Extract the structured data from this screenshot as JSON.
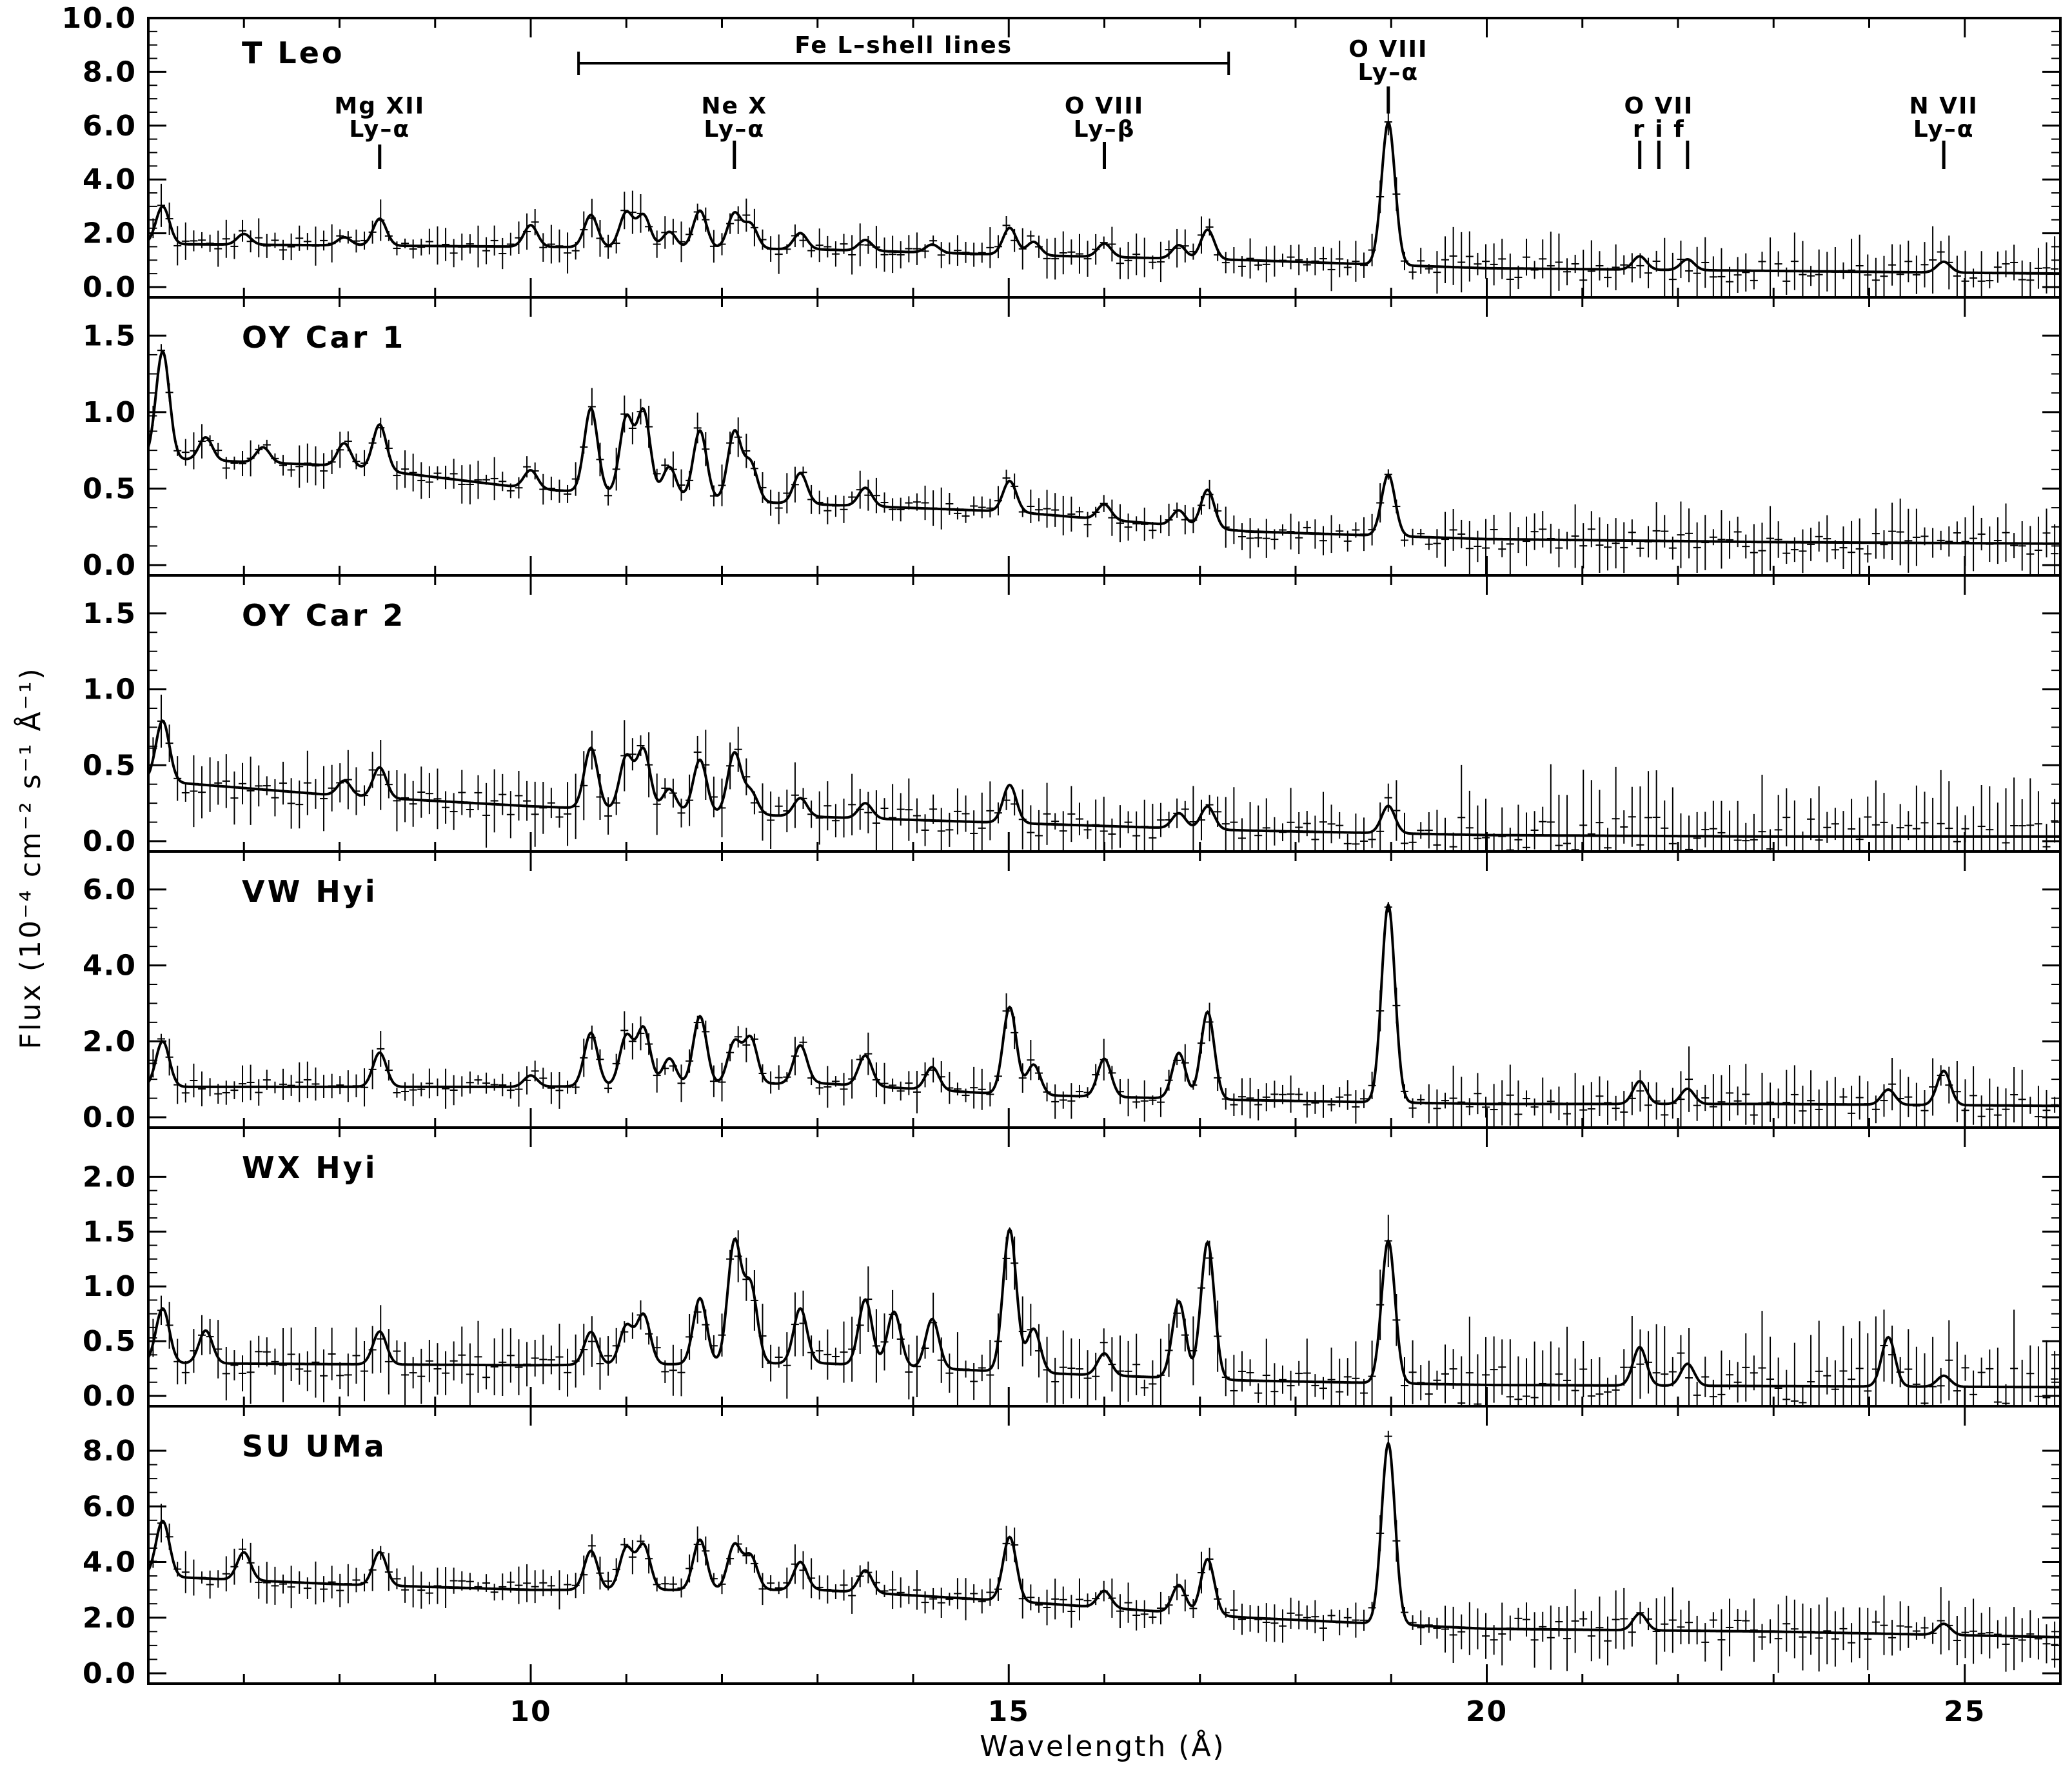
{
  "chart_data": {
    "type": "line",
    "xlabel": "Wavelength (Å)",
    "ylabel": "Flux (10⁻⁴ cm⁻² s⁻¹ Å⁻¹)",
    "xlim": [
      6.0,
      26.0
    ],
    "xticks": [
      10,
      15,
      20,
      25
    ],
    "xtick_labels": [
      "10",
      "15",
      "20",
      "25"
    ],
    "annotations": {
      "fe_band": {
        "label": "Fe L–shell lines",
        "x_start": 10.5,
        "x_end": 17.3
      },
      "lines": [
        {
          "top": "Mg XII",
          "bottom": "Ly–α",
          "x": 8.42,
          "tick_x": [
            8.42
          ]
        },
        {
          "top": "Ne X",
          "bottom": "Ly–α",
          "x": 12.13,
          "tick_x": [
            12.13
          ]
        },
        {
          "top": "O VIII",
          "bottom": "Ly–β",
          "x": 16.0,
          "tick_x": [
            16.0
          ]
        },
        {
          "top": "O VIII",
          "bottom": "Ly–α",
          "x": 18.97,
          "tick_x": [
            18.97
          ]
        },
        {
          "top": "O VII",
          "bottom": "r  i  f",
          "x": 21.8,
          "tick_x": [
            21.6,
            21.8,
            22.1
          ]
        },
        {
          "top": "N VII",
          "bottom": "Ly–α",
          "x": 24.78,
          "tick_x": [
            24.78
          ]
        }
      ]
    },
    "series": [
      {
        "name": "T Leo",
        "ylim": [
          0,
          10.0
        ],
        "yticks": [
          0.0,
          2.0,
          4.0,
          6.0,
          8.0,
          10.0
        ],
        "ytick_labels": [
          "0.0",
          "2.0",
          "4.0",
          "6.0",
          "8.0",
          "10.0"
        ],
        "continuum": [
          [
            6.0,
            1.6
          ],
          [
            10.0,
            1.5
          ],
          [
            13.0,
            1.4
          ],
          [
            15.0,
            1.2
          ],
          [
            17.5,
            1.0
          ],
          [
            20.0,
            0.7
          ],
          [
            23.0,
            0.6
          ],
          [
            26.0,
            0.5
          ]
        ],
        "peaks": [
          [
            6.15,
            1.4
          ],
          [
            7.0,
            0.4
          ],
          [
            8.05,
            0.3
          ],
          [
            8.42,
            1.0
          ],
          [
            10.0,
            0.8
          ],
          [
            10.63,
            1.2
          ],
          [
            11.0,
            1.3
          ],
          [
            11.18,
            1.2
          ],
          [
            11.45,
            0.6
          ],
          [
            11.77,
            1.4
          ],
          [
            12.13,
            1.3
          ],
          [
            12.3,
            0.9
          ],
          [
            12.82,
            0.6
          ],
          [
            13.5,
            0.4
          ],
          [
            14.2,
            0.3
          ],
          [
            15.01,
            1.0
          ],
          [
            15.26,
            0.5
          ],
          [
            16.0,
            0.5
          ],
          [
            16.78,
            0.5
          ],
          [
            17.08,
            1.1
          ],
          [
            18.97,
            5.3
          ],
          [
            21.6,
            0.5
          ],
          [
            22.1,
            0.4
          ],
          [
            24.78,
            0.4
          ]
        ]
      },
      {
        "name": "OY Car 1",
        "ylim": [
          0,
          1.75
        ],
        "yticks": [
          0.0,
          0.5,
          1.0,
          1.5
        ],
        "ytick_labels": [
          "0.0",
          "0.5",
          "1.0",
          "1.5"
        ],
        "continuum": [
          [
            6.0,
            0.7
          ],
          [
            8.0,
            0.65
          ],
          [
            10.0,
            0.5
          ],
          [
            12.0,
            0.42
          ],
          [
            15.0,
            0.35
          ],
          [
            17.5,
            0.22
          ],
          [
            20.0,
            0.17
          ],
          [
            23.0,
            0.15
          ],
          [
            26.0,
            0.14
          ]
        ],
        "peaks": [
          [
            6.15,
            0.7
          ],
          [
            6.6,
            0.15
          ],
          [
            7.2,
            0.1
          ],
          [
            8.05,
            0.15
          ],
          [
            8.42,
            0.3
          ],
          [
            10.0,
            0.12
          ],
          [
            10.63,
            0.55
          ],
          [
            11.0,
            0.5
          ],
          [
            11.18,
            0.55
          ],
          [
            11.45,
            0.2
          ],
          [
            11.77,
            0.45
          ],
          [
            12.13,
            0.45
          ],
          [
            12.3,
            0.25
          ],
          [
            12.82,
            0.2
          ],
          [
            13.5,
            0.12
          ],
          [
            15.01,
            0.2
          ],
          [
            16.0,
            0.1
          ],
          [
            16.78,
            0.1
          ],
          [
            17.08,
            0.25
          ],
          [
            18.97,
            0.4
          ]
        ]
      },
      {
        "name": "OY Car 2",
        "ylim": [
          0,
          1.75
        ],
        "yticks": [
          0.0,
          0.5,
          1.0,
          1.5
        ],
        "ytick_labels": [
          "0.0",
          "0.5",
          "1.0",
          "1.5"
        ],
        "continuum": [
          [
            6.0,
            0.4
          ],
          [
            8.0,
            0.3
          ],
          [
            10.0,
            0.23
          ],
          [
            12.0,
            0.18
          ],
          [
            15.0,
            0.12
          ],
          [
            17.5,
            0.07
          ],
          [
            20.0,
            0.04
          ],
          [
            23.0,
            0.03
          ],
          [
            26.0,
            0.03
          ]
        ],
        "peaks": [
          [
            6.15,
            0.4
          ],
          [
            8.05,
            0.1
          ],
          [
            8.42,
            0.2
          ],
          [
            10.63,
            0.4
          ],
          [
            11.0,
            0.35
          ],
          [
            11.18,
            0.4
          ],
          [
            11.45,
            0.15
          ],
          [
            11.77,
            0.35
          ],
          [
            12.13,
            0.4
          ],
          [
            12.3,
            0.15
          ],
          [
            12.82,
            0.12
          ],
          [
            13.5,
            0.1
          ],
          [
            15.01,
            0.25
          ],
          [
            16.78,
            0.1
          ],
          [
            17.08,
            0.15
          ],
          [
            18.97,
            0.18
          ]
        ]
      },
      {
        "name": "VW Hyi",
        "ylim": [
          0,
          7.0
        ],
        "yticks": [
          0.0,
          2.0,
          4.0,
          6.0
        ],
        "ytick_labels": [
          "0.0",
          "2.0",
          "4.0",
          "6.0"
        ],
        "continuum": [
          [
            6.0,
            0.8
          ],
          [
            10.0,
            0.8
          ],
          [
            13.0,
            0.9
          ],
          [
            15.0,
            0.6
          ],
          [
            17.5,
            0.45
          ],
          [
            20.0,
            0.35
          ],
          [
            23.0,
            0.35
          ],
          [
            26.0,
            0.3
          ]
        ],
        "peaks": [
          [
            6.15,
            1.2
          ],
          [
            8.42,
            0.9
          ],
          [
            10.0,
            0.3
          ],
          [
            10.63,
            1.4
          ],
          [
            11.0,
            1.3
          ],
          [
            11.18,
            1.5
          ],
          [
            11.45,
            0.7
          ],
          [
            11.77,
            1.8
          ],
          [
            12.13,
            1.1
          ],
          [
            12.3,
            1.2
          ],
          [
            12.82,
            1.0
          ],
          [
            13.5,
            0.8
          ],
          [
            14.2,
            0.6
          ],
          [
            15.01,
            2.3
          ],
          [
            15.26,
            0.8
          ],
          [
            16.0,
            1.0
          ],
          [
            16.78,
            1.2
          ],
          [
            17.08,
            2.3
          ],
          [
            18.97,
            5.2
          ],
          [
            21.6,
            0.6
          ],
          [
            22.1,
            0.4
          ],
          [
            24.2,
            0.4
          ],
          [
            24.78,
            0.9
          ]
        ]
      },
      {
        "name": "WX Hyi",
        "ylim": [
          0,
          2.45
        ],
        "yticks": [
          0.0,
          0.5,
          1.0,
          1.5,
          2.0
        ],
        "ytick_labels": [
          "0.0",
          "0.5",
          "1.0",
          "1.5",
          "2.0"
        ],
        "continuum": [
          [
            6.0,
            0.3
          ],
          [
            10.0,
            0.28
          ],
          [
            13.0,
            0.3
          ],
          [
            15.0,
            0.22
          ],
          [
            17.5,
            0.14
          ],
          [
            20.0,
            0.1
          ],
          [
            23.0,
            0.09
          ],
          [
            26.0,
            0.08
          ]
        ],
        "peaks": [
          [
            6.15,
            0.5
          ],
          [
            6.6,
            0.3
          ],
          [
            8.42,
            0.3
          ],
          [
            10.63,
            0.3
          ],
          [
            11.0,
            0.35
          ],
          [
            11.18,
            0.45
          ],
          [
            11.77,
            0.6
          ],
          [
            12.13,
            1.1
          ],
          [
            12.3,
            0.7
          ],
          [
            12.82,
            0.5
          ],
          [
            13.5,
            0.6
          ],
          [
            13.8,
            0.5
          ],
          [
            14.2,
            0.45
          ],
          [
            15.01,
            1.3
          ],
          [
            15.26,
            0.4
          ],
          [
            16.0,
            0.2
          ],
          [
            16.78,
            0.7
          ],
          [
            17.08,
            1.25
          ],
          [
            18.97,
            1.3
          ],
          [
            21.6,
            0.35
          ],
          [
            22.1,
            0.2
          ],
          [
            24.2,
            0.45
          ],
          [
            24.78,
            0.1
          ]
        ]
      },
      {
        "name": "SU UMa",
        "ylim": [
          0,
          9.6
        ],
        "yticks": [
          0.0,
          2.0,
          4.0,
          6.0,
          8.0
        ],
        "ytick_labels": [
          "0.0",
          "2.0",
          "4.0",
          "6.0",
          "8.0"
        ],
        "continuum": [
          [
            6.0,
            3.5
          ],
          [
            8.0,
            3.2
          ],
          [
            10.0,
            3.0
          ],
          [
            13.0,
            3.0
          ],
          [
            15.0,
            2.6
          ],
          [
            17.5,
            2.0
          ],
          [
            20.0,
            1.6
          ],
          [
            23.0,
            1.5
          ],
          [
            26.0,
            1.3
          ]
        ],
        "peaks": [
          [
            6.15,
            2.0
          ],
          [
            7.0,
            1.0
          ],
          [
            8.42,
            1.2
          ],
          [
            10.63,
            1.4
          ],
          [
            11.0,
            1.5
          ],
          [
            11.18,
            1.6
          ],
          [
            11.77,
            1.8
          ],
          [
            12.13,
            1.6
          ],
          [
            12.3,
            1.2
          ],
          [
            12.82,
            1.0
          ],
          [
            13.5,
            0.8
          ],
          [
            15.01,
            2.3
          ],
          [
            16.0,
            0.6
          ],
          [
            16.78,
            1.0
          ],
          [
            17.08,
            2.0
          ],
          [
            18.97,
            6.5
          ],
          [
            21.6,
            0.6
          ],
          [
            24.78,
            0.4
          ]
        ]
      }
    ]
  }
}
